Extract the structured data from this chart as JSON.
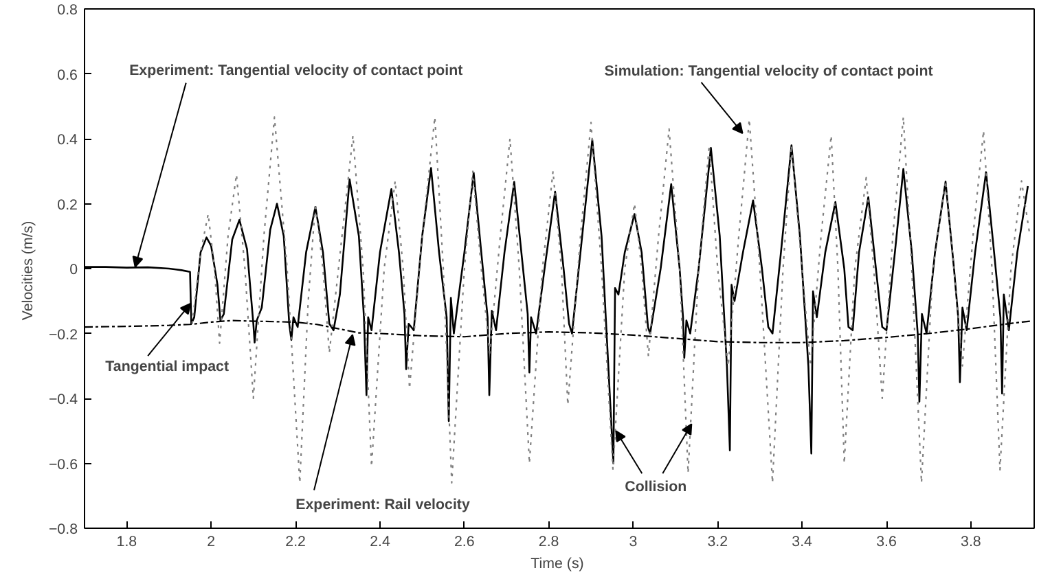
{
  "chart_data": {
    "type": "line",
    "xlabel": "Time  (s)",
    "ylabel": "Velocities  (m/s)",
    "xlim": [
      1.7,
      3.95
    ],
    "ylim": [
      -0.8,
      0.8
    ],
    "xticks": [
      1.8,
      2,
      2.2,
      2.4,
      2.6,
      2.8,
      3,
      3.2,
      3.4,
      3.6,
      3.8
    ],
    "yticks": [
      {
        "value": -0.8,
        "label": "−0.8"
      },
      {
        "value": -0.6,
        "label": "−0.6"
      },
      {
        "value": -0.4,
        "label": "−0.4"
      },
      {
        "value": -0.2,
        "label": "−0.2"
      },
      0,
      0.2,
      0.4,
      0.6,
      0.8
    ],
    "grid": false,
    "marker": "none",
    "series": [
      {
        "color": "#000000",
        "line_style": "solid",
        "x": [
          1.7,
          1.75,
          1.8,
          1.85,
          1.9,
          1.93,
          1.95,
          1.953,
          1.96,
          1.975,
          1.989,
          2.0,
          2.015,
          2.022,
          2.03,
          2.05,
          2.067,
          2.085,
          2.1,
          2.103,
          2.108,
          2.12,
          2.14,
          2.156,
          2.172,
          2.185,
          2.19,
          2.195,
          2.205,
          2.225,
          2.247,
          2.265,
          2.28,
          2.29,
          2.305,
          2.328,
          2.35,
          2.362,
          2.368,
          2.372,
          2.38,
          2.4,
          2.427,
          2.445,
          2.458,
          2.462,
          2.468,
          2.48,
          2.5,
          2.521,
          2.54,
          2.558,
          2.563,
          2.568,
          2.575,
          2.6,
          2.622,
          2.64,
          2.655,
          2.659,
          2.665,
          2.675,
          2.695,
          2.718,
          2.735,
          2.75,
          2.754,
          2.758,
          2.77,
          2.79,
          2.815,
          2.835,
          2.848,
          2.855,
          2.875,
          2.903,
          2.925,
          2.945,
          2.953,
          2.957,
          2.965,
          2.98,
          3.003,
          3.02,
          3.035,
          3.04,
          3.065,
          3.09,
          3.11,
          3.118,
          3.121,
          3.126,
          3.135,
          3.155,
          3.184,
          3.205,
          3.222,
          3.229,
          3.233,
          3.24,
          3.26,
          3.284,
          3.305,
          3.32,
          3.33,
          3.35,
          3.375,
          3.395,
          3.415,
          3.422,
          3.426,
          3.435,
          3.455,
          3.479,
          3.5,
          3.51,
          3.52,
          3.535,
          3.557,
          3.575,
          3.59,
          3.6,
          3.62,
          3.64,
          3.66,
          3.674,
          3.678,
          3.684,
          3.695,
          3.715,
          3.74,
          3.76,
          3.77,
          3.774,
          3.78,
          3.79,
          3.81,
          3.836,
          3.855,
          3.87,
          3.874,
          3.878,
          3.89,
          3.91,
          3.935
        ],
        "values": [
          0.005,
          0.005,
          0.003,
          0.004,
          0.0,
          -0.005,
          -0.01,
          -0.17,
          -0.15,
          0.05,
          0.096,
          0.07,
          -0.05,
          -0.16,
          -0.14,
          0.09,
          0.15,
          0.06,
          -0.17,
          -0.228,
          -0.16,
          -0.12,
          0.12,
          0.2,
          0.1,
          -0.17,
          -0.22,
          -0.15,
          -0.18,
          0.05,
          0.19,
          0.05,
          -0.17,
          -0.19,
          -0.08,
          0.275,
          0.1,
          -0.15,
          -0.39,
          -0.15,
          -0.19,
          0.05,
          0.245,
          0.05,
          -0.14,
          -0.31,
          -0.17,
          -0.19,
          0.1,
          0.31,
          0.05,
          -0.15,
          -0.47,
          -0.09,
          -0.2,
          0.05,
          0.295,
          0.05,
          -0.15,
          -0.39,
          -0.13,
          -0.19,
          0.05,
          0.267,
          0.05,
          -0.14,
          -0.32,
          -0.15,
          -0.2,
          0.0,
          0.237,
          0.0,
          -0.17,
          -0.2,
          0.05,
          0.397,
          0.1,
          -0.4,
          -0.6,
          -0.06,
          -0.08,
          0.05,
          0.168,
          0.05,
          -0.18,
          -0.2,
          0.0,
          0.26,
          0.0,
          -0.15,
          -0.275,
          -0.16,
          -0.2,
          0.0,
          0.372,
          0.1,
          -0.3,
          -0.56,
          -0.05,
          -0.1,
          0.05,
          0.21,
          0.0,
          -0.18,
          -0.2,
          0.05,
          0.38,
          0.1,
          -0.3,
          -0.57,
          -0.07,
          -0.15,
          0.05,
          0.205,
          0.0,
          -0.18,
          -0.19,
          0.05,
          0.22,
          0.0,
          -0.18,
          -0.19,
          0.05,
          0.307,
          0.05,
          -0.2,
          -0.41,
          -0.14,
          -0.2,
          0.05,
          0.268,
          0.0,
          -0.15,
          -0.35,
          -0.12,
          -0.19,
          0.05,
          0.297,
          0.05,
          -0.15,
          -0.385,
          -0.08,
          -0.19,
          0.05,
          0.254
        ]
      },
      {
        "color": "#808080",
        "line_style": "dotted",
        "x": [
          1.955,
          1.975,
          1.993,
          2.008,
          2.02,
          2.04,
          2.06,
          2.08,
          2.1,
          2.125,
          2.15,
          2.18,
          2.21,
          2.23,
          2.247,
          2.265,
          2.28,
          2.31,
          2.336,
          2.36,
          2.38,
          2.41,
          2.436,
          2.455,
          2.47,
          2.5,
          2.53,
          2.55,
          2.57,
          2.6,
          2.62,
          2.64,
          2.66,
          2.685,
          2.708,
          2.73,
          2.754,
          2.785,
          2.81,
          2.83,
          2.845,
          2.875,
          2.9,
          2.925,
          2.952,
          2.98,
          3.003,
          3.02,
          3.036,
          3.06,
          3.085,
          3.11,
          3.13,
          3.155,
          3.18,
          3.2,
          3.225,
          3.25,
          3.275,
          3.3,
          3.33,
          3.355,
          3.375,
          3.4,
          3.42,
          3.445,
          3.469,
          3.485,
          3.5,
          3.525,
          3.552,
          3.57,
          3.59,
          3.615,
          3.64,
          3.66,
          3.683,
          3.71,
          3.74,
          3.76,
          3.78,
          3.805,
          3.83,
          3.85,
          3.869,
          3.895,
          3.92,
          3.94
        ],
        "values": [
          -0.17,
          0.05,
          0.168,
          0.0,
          -0.23,
          0.1,
          0.29,
          0.0,
          -0.4,
          0.1,
          0.467,
          0.0,
          -0.66,
          -0.1,
          0.2,
          0.0,
          -0.26,
          0.1,
          0.41,
          0.0,
          -0.61,
          0.0,
          0.27,
          0.0,
          -0.37,
          0.1,
          0.467,
          0.0,
          -0.66,
          0.0,
          0.3,
          0.0,
          -0.26,
          0.1,
          0.4,
          0.0,
          -0.6,
          0.0,
          0.3,
          0.0,
          -0.42,
          0.1,
          0.45,
          0.0,
          -0.62,
          0.0,
          0.2,
          0.0,
          -0.27,
          0.1,
          0.43,
          0.0,
          -0.63,
          0.0,
          0.38,
          0.0,
          -0.3,
          0.1,
          0.46,
          0.0,
          -0.66,
          0.0,
          0.38,
          0.0,
          -0.3,
          0.1,
          0.41,
          0.0,
          -0.6,
          0.0,
          0.28,
          0.0,
          -0.4,
          0.1,
          0.467,
          0.0,
          -0.66,
          0.0,
          0.27,
          0.0,
          -0.3,
          0.1,
          0.425,
          0.0,
          -0.62,
          0.0,
          0.27,
          0.1
        ]
      },
      {
        "color": "#000000",
        "line_style": "dashed",
        "x": [
          1.7,
          1.8,
          1.9,
          1.95,
          2.0,
          2.05,
          2.1,
          2.2,
          2.25,
          2.3,
          2.35,
          2.4,
          2.5,
          2.6,
          2.7,
          2.8,
          2.9,
          3.0,
          3.1,
          3.2,
          3.3,
          3.4,
          3.5,
          3.6,
          3.7,
          3.8,
          3.9,
          3.94
        ],
        "values": [
          -0.18,
          -0.178,
          -0.175,
          -0.172,
          -0.165,
          -0.16,
          -0.162,
          -0.165,
          -0.172,
          -0.185,
          -0.198,
          -0.2,
          -0.207,
          -0.21,
          -0.2,
          -0.195,
          -0.198,
          -0.205,
          -0.215,
          -0.225,
          -0.228,
          -0.228,
          -0.222,
          -0.212,
          -0.2,
          -0.185,
          -0.168,
          -0.162
        ]
      }
    ],
    "annotations": [
      {
        "text": "Experiment: Tangential velocity of contact point",
        "x": 1.82,
        "y": 0.005
      },
      {
        "text": "Tangential impact",
        "x": 1.951,
        "y": -0.108
      },
      {
        "text": "Experiment: Rail velocity",
        "x": 2.335,
        "y": -0.204
      },
      {
        "text": "Simulation: Tangential velocity of contact point",
        "x": 3.259,
        "y": 0.417
      },
      {
        "text": "Collision",
        "x": 2.959,
        "y": -0.5
      }
    ]
  }
}
